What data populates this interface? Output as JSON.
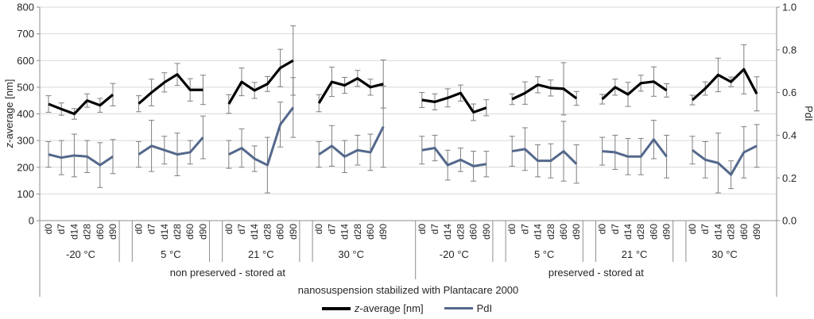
{
  "chart_data": {
    "type": "line",
    "title": "nanosuspension stabilized with Plantacare 2000",
    "left_axis": {
      "title_italic": "z",
      "title_rest": "-average [nm]",
      "min": 0,
      "max": 800,
      "tick_step": 100,
      "tick_labels": [
        "0",
        "100",
        "200",
        "300",
        "400",
        "500",
        "600",
        "700",
        "800"
      ]
    },
    "right_axis": {
      "title": "PdI",
      "min": 0.0,
      "max": 1.0,
      "tick_step": 0.2,
      "tick_labels": [
        "0.0",
        "0.2",
        "0.4",
        "0.6",
        "0.8",
        "1.0"
      ]
    },
    "timepoints": [
      "d0",
      "d7",
      "d14",
      "d28",
      "d60",
      "d90"
    ],
    "sections": [
      {
        "label": "non preserved - stored at",
        "groups": [
          {
            "label": "-20 °C",
            "z": [
              437,
              418,
              400,
              450,
              432,
              472
            ],
            "z_err": [
              31,
              23,
              20,
              25,
              26,
              42
            ],
            "pdi": [
              0.31,
              0.295,
              0.305,
              0.3,
              0.26,
              0.3
            ],
            "pdi_err": [
              0.06,
              0.08,
              0.1,
              0.075,
              0.105,
              0.08
            ]
          },
          {
            "label": "5 °C",
            "z": [
              438,
              480,
              518,
              548,
              490,
              490
            ],
            "z_err": [
              30,
              50,
              36,
              41,
              42,
              55
            ],
            "pdi": [
              0.31,
              0.35,
              0.33,
              0.31,
              0.32,
              0.39
            ],
            "pdi_err": [
              0.06,
              0.12,
              0.065,
              0.1,
              0.055,
              0.1
            ]
          },
          {
            "label": "21 °C",
            "z": [
              437,
              520,
              488,
              512,
              572,
              600
            ],
            "z_err": [
              35,
              52,
              30,
              28,
              70,
              130
            ],
            "pdi": [
              0.31,
              0.34,
              0.29,
              0.26,
              0.45,
              0.53
            ],
            "pdi_err": [
              0.065,
              0.09,
              0.06,
              0.13,
              0.105,
              0.14
            ]
          },
          {
            "label": "30 °C",
            "z": [
              440,
              520,
              507,
              533,
              500,
              512
            ],
            "z_err": [
              32,
              55,
              30,
              30,
              30,
              90
            ],
            "pdi": [
              0.31,
              0.35,
              0.3,
              0.33,
              0.32,
              0.44
            ],
            "pdi_err": [
              0.06,
              0.095,
              0.075,
              0.07,
              0.085,
              0.19
            ]
          }
        ]
      },
      {
        "label": "preserved - stored at",
        "groups": [
          {
            "label": "-20 °C",
            "z": [
              452,
              445,
              460,
              478,
              406,
              423
            ],
            "z_err": [
              28,
              30,
              34,
              30,
              31,
              30
            ],
            "pdi": [
              0.33,
              0.34,
              0.26,
              0.285,
              0.255,
              0.265
            ],
            "pdi_err": [
              0.065,
              0.06,
              0.07,
              0.055,
              0.07,
              0.06
            ]
          },
          {
            "label": "5 °C",
            "z": [
              455,
              478,
              509,
              497,
              494,
              458
            ],
            "z_err": [
              20,
              42,
              30,
              30,
              98,
              26
            ],
            "pdi": [
              0.325,
              0.335,
              0.28,
              0.28,
              0.325,
              0.265
            ],
            "pdi_err": [
              0.07,
              0.1,
              0.075,
              0.08,
              0.14,
              0.09
            ]
          },
          {
            "label": "21 °C",
            "z": [
              455,
              500,
              473,
              515,
              521,
              488
            ],
            "z_err": [
              18,
              30,
              45,
              30,
              55,
              25
            ],
            "pdi": [
              0.325,
              0.32,
              0.3,
              0.3,
              0.38,
              0.3
            ],
            "pdi_err": [
              0.065,
              0.08,
              0.085,
              0.085,
              0.09,
              0.1
            ]
          },
          {
            "label": "30 °C",
            "z": [
              452,
              495,
              546,
              520,
              567,
              475
            ],
            "z_err": [
              18,
              25,
              63,
              18,
              92,
              64
            ],
            "pdi": [
              0.33,
              0.285,
              0.27,
              0.215,
              0.32,
              0.35
            ],
            "pdi_err": [
              0.065,
              0.085,
              0.14,
              0.065,
              0.12,
              0.1
            ]
          }
        ]
      }
    ],
    "legend": [
      {
        "italic_prefix": "z",
        "label": "-average [nm]",
        "swatch_color": "#000000"
      },
      {
        "italic_prefix": "",
        "label": "PdI",
        "swatch_color": "#54688c"
      }
    ],
    "colors": {
      "z_series": "#000000",
      "pdi_series": "#54688c",
      "error_bar": "#7f7f7f",
      "gridline": "#d9d9d9",
      "axis": "#8e8e8e",
      "text": "#262626"
    },
    "layout": {
      "grid": "horizontal-only",
      "legend_position": "bottom-center"
    }
  }
}
